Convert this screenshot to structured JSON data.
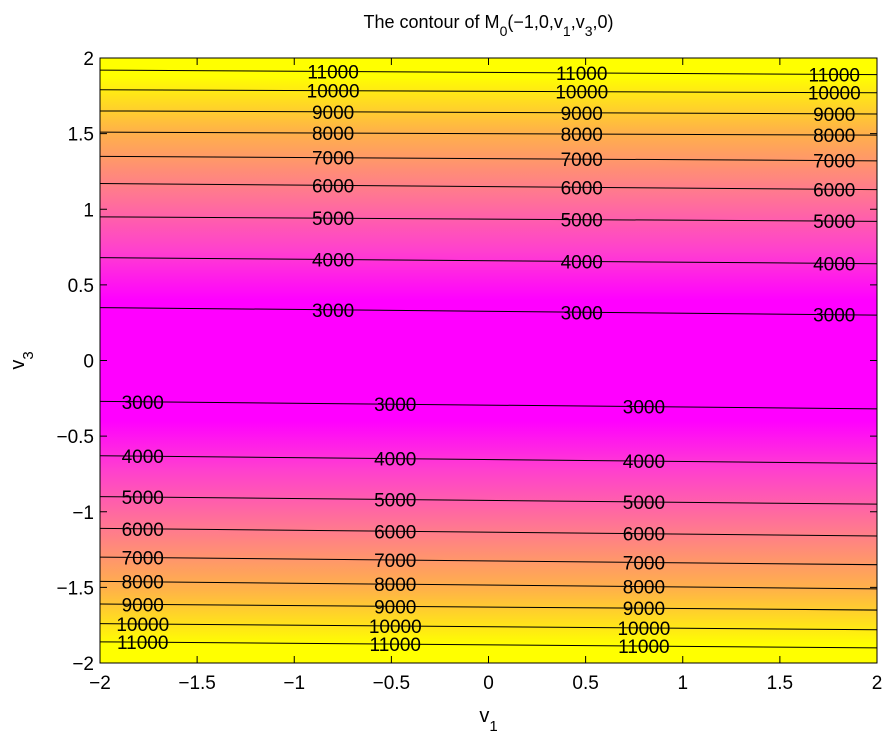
{
  "chart_data": {
    "type": "contour",
    "title": {
      "main": "The contour of M",
      "sub": "0",
      "rest": "(−1,0,v",
      "sub2": "1",
      "rest2": ",v",
      "sub3": "3",
      "rest3": ",0)"
    },
    "xlabel": {
      "base": "v",
      "sub": "1"
    },
    "ylabel": {
      "base": "v",
      "sub": "3"
    },
    "xlim": [
      -2,
      2
    ],
    "ylim": [
      -2,
      2
    ],
    "xticks": [
      -2,
      -1.5,
      -1,
      -0.5,
      0,
      0.5,
      1,
      1.5,
      2
    ],
    "yticks": [
      -2,
      -1.5,
      -1,
      -0.5,
      0,
      0.5,
      1,
      1.5,
      2
    ],
    "xtick_labels": [
      "−2",
      "−1.5",
      "−1",
      "−0.5",
      "0",
      "0.5",
      "1",
      "1.5",
      "2"
    ],
    "ytick_labels": [
      "−2",
      "−1.5",
      "−1",
      "−0.5",
      "0",
      "0.5",
      "1",
      "1.5",
      "2"
    ],
    "colormap": [
      "#ff00ff",
      "#ffff00"
    ],
    "levels": [
      3000,
      4000,
      5000,
      6000,
      7000,
      8000,
      9000,
      10000,
      11000
    ],
    "level_labels": [
      "3000",
      "4000",
      "5000",
      "6000",
      "7000",
      "8000",
      "9000",
      "10000",
      "11000"
    ],
    "upper_contours": [
      {
        "level": 3000,
        "y_left": 0.35,
        "y_right": 0.3
      },
      {
        "level": 4000,
        "y_left": 0.68,
        "y_right": 0.64
      },
      {
        "level": 5000,
        "y_left": 0.95,
        "y_right": 0.92
      },
      {
        "level": 6000,
        "y_left": 1.17,
        "y_right": 1.13
      },
      {
        "level": 7000,
        "y_left": 1.35,
        "y_right": 1.32
      },
      {
        "level": 8000,
        "y_left": 1.51,
        "y_right": 1.49
      },
      {
        "level": 9000,
        "y_left": 1.65,
        "y_right": 1.63
      },
      {
        "level": 10000,
        "y_left": 1.79,
        "y_right": 1.77
      },
      {
        "level": 11000,
        "y_left": 1.92,
        "y_right": 1.89
      }
    ],
    "lower_contours": [
      {
        "level": 3000,
        "y_left": -0.27,
        "y_right": -0.32
      },
      {
        "level": 4000,
        "y_left": -0.63,
        "y_right": -0.68
      },
      {
        "level": 5000,
        "y_left": -0.9,
        "y_right": -0.95
      },
      {
        "level": 6000,
        "y_left": -1.11,
        "y_right": -1.16
      },
      {
        "level": 7000,
        "y_left": -1.3,
        "y_right": -1.35
      },
      {
        "level": 8000,
        "y_left": -1.46,
        "y_right": -1.51
      },
      {
        "level": 9000,
        "y_left": -1.61,
        "y_right": -1.65
      },
      {
        "level": 10000,
        "y_left": -1.74,
        "y_right": -1.78
      },
      {
        "level": 11000,
        "y_left": -1.86,
        "y_right": -1.9
      }
    ],
    "upper_label_x": [
      -0.8,
      0.48,
      1.78
    ],
    "lower_label_x": [
      -1.78,
      -0.48,
      0.8
    ]
  }
}
